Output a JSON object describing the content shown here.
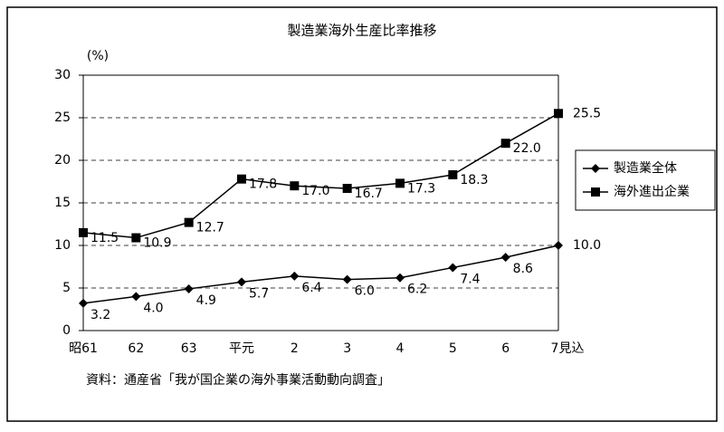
{
  "chart_data": {
    "type": "line",
    "title": "製造業海外生産比率推移",
    "y_label": "(%)",
    "note": "資料：通産省「我が国企業の海外事業活動動向調査」",
    "categories": [
      "昭61",
      "62",
      "63",
      "平元",
      "2",
      "3",
      "4",
      "5",
      "6",
      "7見込"
    ],
    "series": [
      {
        "name": "製造業全体",
        "color": "#000000",
        "marker": "diamond",
        "values": [
          3.2,
          4.0,
          4.9,
          5.7,
          6.4,
          6.0,
          6.2,
          7.4,
          8.6,
          10.0
        ],
        "value_labels": [
          "3.2",
          "4.0",
          "4.9",
          "5.7",
          "6.4",
          "6.0",
          "6.2",
          "7.4",
          "8.6",
          "10.0"
        ]
      },
      {
        "name": "海外進出企業",
        "color": "#000000",
        "marker": "square",
        "values": [
          11.5,
          10.9,
          12.7,
          17.8,
          17.0,
          16.7,
          17.3,
          18.3,
          22.0,
          25.5
        ],
        "value_labels": [
          "11.5",
          "10.9",
          "12.7",
          "17.8",
          "17.0",
          "16.7",
          "17.3",
          "18.3",
          "22.0",
          "25.5"
        ]
      }
    ],
    "ylim": [
      0,
      30
    ],
    "yticks": [
      0,
      5,
      10,
      15,
      20,
      25,
      30
    ],
    "grid": true,
    "legend_position": "right"
  }
}
